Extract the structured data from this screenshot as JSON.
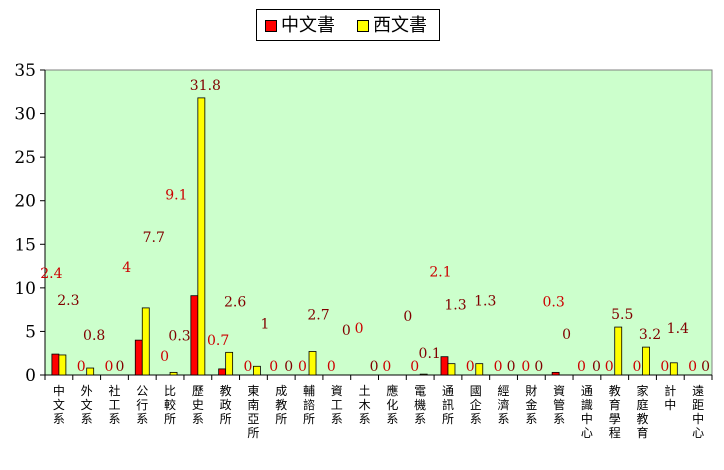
{
  "chart_data": {
    "type": "bar",
    "ylim": [
      0,
      35
    ],
    "yticks": [
      0,
      5,
      10,
      15,
      20,
      25,
      30,
      35
    ],
    "grid": false,
    "legend_position": "top-center",
    "categories": [
      "中文系",
      "外文系",
      "社工系",
      "公行系",
      "比較所",
      "歷史系",
      "教政所",
      "東南亞所",
      "成教所",
      "輔諮所",
      "資工系",
      "土木系",
      "應化系",
      "電機系",
      "通訊所",
      "國企系",
      "經濟系",
      "財金系",
      "資管系",
      "通識中心",
      "教育學程",
      "家庭教育",
      "計中",
      "遠距中心"
    ],
    "series": [
      {
        "name": "中文書",
        "color": "#ff0000",
        "values": [
          2.4,
          0,
          0,
          4,
          0,
          9.1,
          0.7,
          0,
          0,
          0,
          0,
          0,
          0,
          0,
          2.1,
          0,
          0,
          0,
          0.3,
          0,
          0,
          0,
          0,
          0
        ]
      },
      {
        "name": "西文書",
        "color": "#ffff00",
        "values": [
          2.3,
          0.8,
          0,
          7.7,
          0.3,
          31.8,
          2.6,
          1,
          0,
          2.7,
          0,
          0,
          0,
          0.1,
          1.3,
          1.3,
          0,
          0,
          0,
          0,
          5.5,
          3.2,
          1.4,
          0
        ]
      }
    ],
    "label_colors": {
      "series_0": "#cc0000",
      "series_1": "#800000"
    }
  },
  "colors": {
    "plot_background": "#ccffcc",
    "page_background": "#ffffff"
  }
}
